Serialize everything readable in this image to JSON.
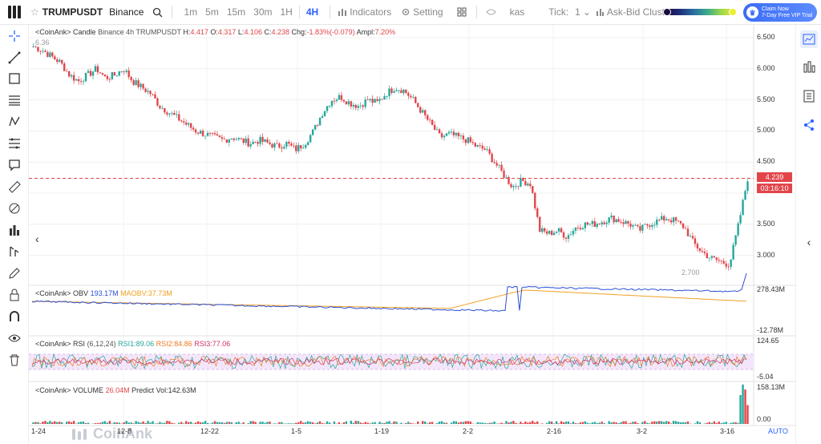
{
  "toolbar": {
    "symbol": "TRUMPUSDT",
    "exchange": "Binance",
    "intervals": [
      "1m",
      "5m",
      "15m",
      "30m",
      "1H",
      "4H"
    ],
    "active_interval": "4H",
    "indicators_label": "Indicators",
    "setting_label": "Setting",
    "kas_label": "kas",
    "tick_label": "Tick:",
    "tick_value": "1",
    "cluster_label": "Ask-Bid Cluster",
    "vip_line1": "Claim Now",
    "vip_line2": "7-Day Free VIP Trial"
  },
  "legend": {
    "main_prefix": "<CoinAnk> Candle",
    "main_info": "Binance 4h TRUMPUSDT",
    "h_label": "H:",
    "h_value": "4.417",
    "o_label": "O:",
    "o_value": "4.317",
    "l_label": "L:",
    "l_value": "4.106",
    "c_label": "C:",
    "c_value": "4.238",
    "chg_label": "Chg:",
    "chg_value": "-1.83%(-0.079)",
    "ampl_label": "Ampl:",
    "ampl_value": "7.20%",
    "obv_name": "<CoinAnk> OBV",
    "obv_value": "193.17M",
    "maobv_label": "MAOBV:",
    "maobv_value": "37.73M",
    "rsi_name": "<CoinAnk> RSI",
    "rsi_params": "(6,12,24)",
    "rsi1_label": "RSI1:",
    "rsi1_value": "89.06",
    "rsi2_label": "RSI2:",
    "rsi2_value": "84.86",
    "rsi3_label": "RSI3:",
    "rsi3_value": "77.06",
    "vol_name": "<CoinAnk> VOLUME",
    "vol_value": "26.04M",
    "predict_label": "Predict Vol:",
    "predict_value": "142.63M"
  },
  "price_axis": [
    "6.500",
    "6.000",
    "5.500",
    "5.000",
    "4.500",
    "3.500",
    "3.000"
  ],
  "current_price": "4.239",
  "countdown": "03:16:10",
  "high_marker": "6.36",
  "low_marker": "2.700",
  "obv_axis": [
    "278.43M",
    "-12.78M"
  ],
  "rsi_axis": [
    "124.65",
    "-5.04"
  ],
  "vol_axis": [
    "158.13M",
    "0.00"
  ],
  "time_axis": [
    "1-24",
    "12-8",
    "12-22",
    "1-5",
    "1-19",
    "2-2",
    "2-16",
    "3-2",
    "3-16"
  ],
  "auto_label": "AUTO",
  "watermark": "CoinAnk",
  "colors": {
    "up": "#26a69a",
    "down": "#e2444a",
    "accent": "#2962ff",
    "obv": "#2b4fd8",
    "maobv": "#f0a020"
  },
  "chart_data": {
    "type": "candlestick",
    "ylim": [
      2.6,
      6.6
    ],
    "approx_close_path": [
      6.36,
      6.3,
      6.2,
      6.1,
      5.9,
      5.8,
      5.9,
      6.0,
      5.85,
      5.9,
      6.0,
      5.8,
      5.7,
      5.6,
      5.4,
      5.3,
      5.2,
      5.1,
      5.0,
      4.95,
      4.9,
      4.85,
      4.9,
      4.85,
      4.8,
      4.85,
      4.8,
      4.75,
      4.8,
      4.7,
      4.8,
      5.0,
      5.3,
      5.5,
      5.55,
      5.45,
      5.4,
      5.5,
      5.45,
      5.6,
      5.7,
      5.65,
      5.5,
      5.3,
      5.1,
      4.9,
      4.95,
      4.9,
      4.85,
      4.75,
      4.7,
      4.5,
      4.3,
      4.1,
      4.2,
      4.15,
      3.4,
      3.35,
      3.4,
      3.3,
      3.45,
      3.5,
      3.5,
      3.55,
      3.6,
      3.55,
      3.5,
      3.4,
      3.5,
      3.55,
      3.6,
      3.55,
      3.45,
      3.2,
      3.05,
      2.95,
      2.9,
      2.85,
      3.5,
      4.238
    ]
  }
}
